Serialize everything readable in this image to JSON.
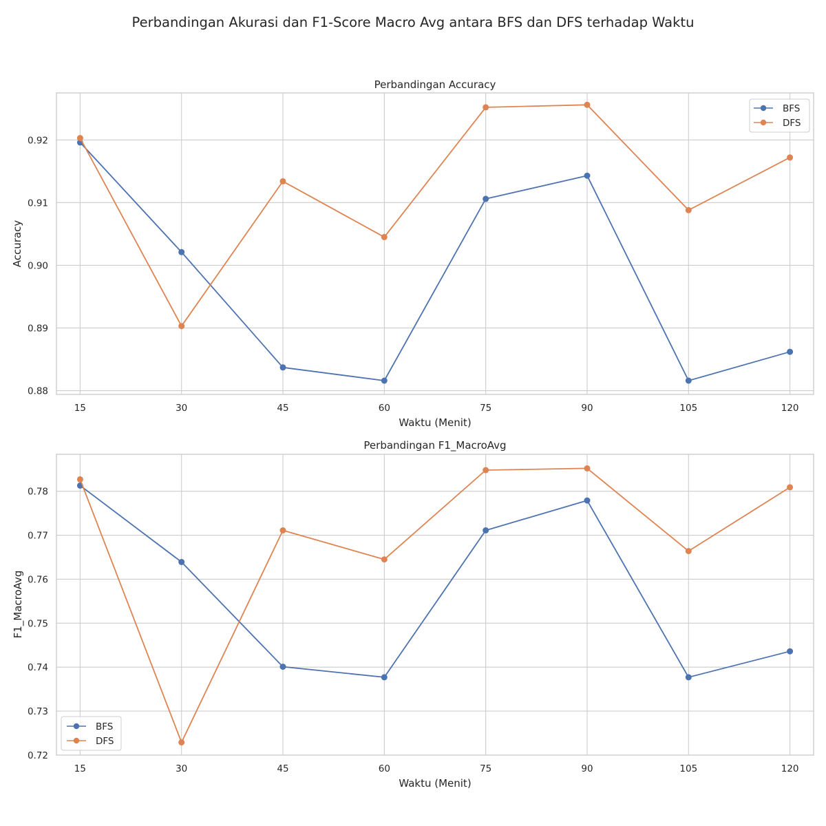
{
  "figure": {
    "suptitle": "Perbandingan Akurasi dan F1-Score Macro Avg antara BFS dan DFS terhadap Waktu"
  },
  "colors": {
    "BFS": "#4c72b0",
    "DFS": "#dd8452",
    "grid": "#cccccc",
    "text": "#262626"
  },
  "chart_data": [
    {
      "type": "line",
      "title": "Perbandingan Accuracy",
      "xlabel": "Waktu (Menit)",
      "ylabel": "Accuracy",
      "x": [
        15,
        30,
        45,
        60,
        75,
        90,
        105,
        120
      ],
      "x_ticklabels": [
        "15",
        "30",
        "45",
        "60",
        "75",
        "90",
        "105",
        "120"
      ],
      "y_ticks": [
        0.88,
        0.89,
        0.9,
        0.91,
        0.92
      ],
      "y_ticklabels": [
        "0.88",
        "0.89",
        "0.90",
        "0.91",
        "0.92"
      ],
      "xlim": [
        11.5,
        123.5
      ],
      "ylim": [
        0.8794,
        0.9275
      ],
      "grid": true,
      "legend": "top-right",
      "series": [
        {
          "name": "BFS",
          "values": [
            0.9196,
            0.9021,
            0.8837,
            0.8816,
            0.9106,
            0.9143,
            0.8816,
            0.8862
          ]
        },
        {
          "name": "DFS",
          "values": [
            0.9203,
            0.8903,
            0.9134,
            0.9045,
            0.9252,
            0.9256,
            0.9088,
            0.9172
          ]
        }
      ]
    },
    {
      "type": "line",
      "title": "Perbandingan F1_MacroAvg",
      "xlabel": "Waktu (Menit)",
      "ylabel": "F1_MacroAvg",
      "x": [
        15,
        30,
        45,
        60,
        75,
        90,
        105,
        120
      ],
      "x_ticklabels": [
        "15",
        "30",
        "45",
        "60",
        "75",
        "90",
        "105",
        "120"
      ],
      "y_ticks": [
        0.72,
        0.73,
        0.74,
        0.75,
        0.76,
        0.77,
        0.78
      ],
      "y_ticklabels": [
        "0.72",
        "0.73",
        "0.74",
        "0.75",
        "0.76",
        "0.77",
        "0.78"
      ],
      "xlim": [
        11.5,
        123.5
      ],
      "ylim": [
        0.72,
        0.7884
      ],
      "grid": true,
      "legend": "bottom-left",
      "series": [
        {
          "name": "BFS",
          "values": [
            0.7813,
            0.7639,
            0.7401,
            0.7377,
            0.7711,
            0.7779,
            0.7377,
            0.7436
          ]
        },
        {
          "name": "DFS",
          "values": [
            0.7827,
            0.7229,
            0.7711,
            0.7645,
            0.7848,
            0.7852,
            0.7664,
            0.7809
          ]
        }
      ]
    }
  ]
}
